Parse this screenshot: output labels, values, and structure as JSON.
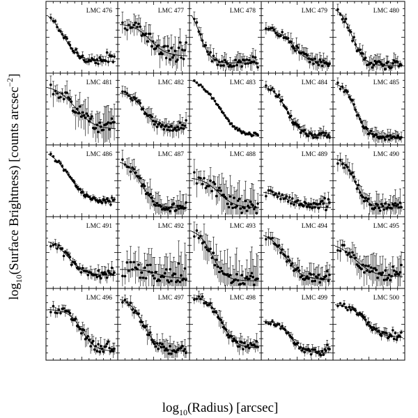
{
  "chart_data": {
    "type": "scatter",
    "layout": {
      "rows": 5,
      "cols": 5
    },
    "xlabel_prefix": "log",
    "xlabel_sub": "10",
    "xlabel_rest": "(Radius) [arcsec]",
    "ylabel_prefix": "log",
    "ylabel_sub": "10",
    "ylabel_rest": "(Surface Brightness) [counts arcsec",
    "ylabel_exp": "−2",
    "ylabel_close": "]",
    "xlim": [
      0,
      1
    ],
    "ylim": [
      0,
      1
    ],
    "panels": [
      {
        "name": "LMC 476",
        "fit": {
          "a": 0.92,
          "b": 0.14,
          "r0": 0.22,
          "w": 0.12
        },
        "scatter": 0.05,
        "err": 0.06,
        "tail": 0.12
      },
      {
        "name": "LMC 477",
        "fit": {
          "a": 0.7,
          "b": 0.22,
          "r0": 0.45,
          "w": 0.12
        },
        "scatter": 0.1,
        "err": 0.18,
        "tail": 0.18
      },
      {
        "name": "LMC 478",
        "fit": {
          "a": 0.98,
          "b": 0.12,
          "r0": 0.12,
          "w": 0.08
        },
        "scatter": 0.06,
        "err": 0.12,
        "tail": 0.1
      },
      {
        "name": "LMC 479",
        "fit": {
          "a": 0.62,
          "b": 0.12,
          "r0": 0.45,
          "w": 0.11
        },
        "scatter": 0.05,
        "err": 0.1,
        "tail": 0.1
      },
      {
        "name": "LMC 480",
        "fit": {
          "a": 0.96,
          "b": 0.08,
          "r0": 0.25,
          "w": 0.09
        },
        "scatter": 0.06,
        "err": 0.1,
        "tail": 0.05
      },
      {
        "name": "LMC 481",
        "fit": {
          "a": 0.85,
          "b": 0.2,
          "r0": 0.4,
          "w": 0.14
        },
        "scatter": 0.1,
        "err": 0.22,
        "tail": 0.15
      },
      {
        "name": "LMC 482",
        "fit": {
          "a": 0.75,
          "b": 0.22,
          "r0": 0.35,
          "w": 0.1
        },
        "scatter": 0.05,
        "err": 0.1,
        "tail": 0.12
      },
      {
        "name": "LMC 483",
        "fit": {
          "a": 0.98,
          "b": 0.08,
          "r0": 0.4,
          "w": 0.15
        },
        "scatter": 0.02,
        "err": 0.02,
        "tail": 0.04
      },
      {
        "name": "LMC 484",
        "fit": {
          "a": 0.85,
          "b": 0.1,
          "r0": 0.35,
          "w": 0.1
        },
        "scatter": 0.04,
        "err": 0.08,
        "tail": 0.05
      },
      {
        "name": "LMC 485",
        "fit": {
          "a": 0.9,
          "b": 0.08,
          "r0": 0.3,
          "w": 0.09
        },
        "scatter": 0.04,
        "err": 0.09,
        "tail": 0.05
      },
      {
        "name": "LMC 486",
        "fit": {
          "a": 0.98,
          "b": 0.18,
          "r0": 0.3,
          "w": 0.14
        },
        "scatter": 0.03,
        "err": 0.04,
        "tail": 0.07
      },
      {
        "name": "LMC 487",
        "fit": {
          "a": 0.8,
          "b": 0.1,
          "r0": 0.32,
          "w": 0.1
        },
        "scatter": 0.06,
        "err": 0.18,
        "tail": 0.08
      },
      {
        "name": "LMC 488",
        "fit": {
          "a": 0.55,
          "b": 0.1,
          "r0": 0.4,
          "w": 0.12
        },
        "scatter": 0.1,
        "err": 0.25,
        "tail": 0.15
      },
      {
        "name": "LMC 489",
        "fit": {
          "a": 0.35,
          "b": 0.1,
          "r0": 0.35,
          "w": 0.15
        },
        "scatter": 0.05,
        "err": 0.08,
        "tail": 0.12
      },
      {
        "name": "LMC 490",
        "fit": {
          "a": 0.85,
          "b": 0.1,
          "r0": 0.3,
          "w": 0.09
        },
        "scatter": 0.06,
        "err": 0.16,
        "tail": 0.12
      },
      {
        "name": "LMC 491",
        "fit": {
          "a": 0.7,
          "b": 0.16,
          "r0": 0.3,
          "w": 0.12
        },
        "scatter": 0.06,
        "err": 0.08,
        "tail": 0.1
      },
      {
        "name": "LMC 492",
        "fit": {
          "a": 0.25,
          "b": 0.12,
          "r0": 0.55,
          "w": 0.1
        },
        "scatter": 0.12,
        "err": 0.3,
        "tail": 0.15
      },
      {
        "name": "LMC 493",
        "fit": {
          "a": 0.85,
          "b": 0.08,
          "r0": 0.3,
          "w": 0.1
        },
        "scatter": 0.08,
        "err": 0.3,
        "tail": 0.1
      },
      {
        "name": "LMC 494",
        "fit": {
          "a": 0.8,
          "b": 0.1,
          "r0": 0.32,
          "w": 0.12
        },
        "scatter": 0.06,
        "err": 0.14,
        "tail": 0.1
      },
      {
        "name": "LMC 495",
        "fit": {
          "a": 0.65,
          "b": 0.14,
          "r0": 0.3,
          "w": 0.14
        },
        "scatter": 0.08,
        "err": 0.2,
        "tail": 0.18
      },
      {
        "name": "LMC 496",
        "fit": {
          "a": 0.72,
          "b": 0.1,
          "r0": 0.5,
          "w": 0.1
        },
        "scatter": 0.06,
        "err": 0.1,
        "tail": 0.1
      },
      {
        "name": "LMC 497",
        "fit": {
          "a": 0.9,
          "b": 0.1,
          "r0": 0.35,
          "w": 0.11
        },
        "scatter": 0.06,
        "err": 0.12,
        "tail": 0.08
      },
      {
        "name": "LMC 498",
        "fit": {
          "a": 0.9,
          "b": 0.15,
          "r0": 0.45,
          "w": 0.1
        },
        "scatter": 0.05,
        "err": 0.1,
        "tail": 0.08
      },
      {
        "name": "LMC 499",
        "fit": {
          "a": 0.55,
          "b": 0.08,
          "r0": 0.4,
          "w": 0.09
        },
        "scatter": 0.04,
        "err": 0.06,
        "tail": 0.1
      },
      {
        "name": "LMC 500",
        "fit": {
          "a": 0.8,
          "b": 0.3,
          "r0": 0.45,
          "w": 0.12
        },
        "scatter": 0.04,
        "err": 0.06,
        "tail": 0.08
      }
    ]
  }
}
